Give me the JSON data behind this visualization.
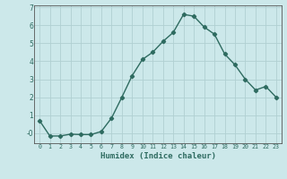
{
  "x": [
    0,
    1,
    2,
    3,
    4,
    5,
    6,
    7,
    8,
    9,
    10,
    11,
    12,
    13,
    14,
    15,
    16,
    17,
    18,
    19,
    20,
    21,
    22,
    23
  ],
  "y": [
    0.7,
    -0.15,
    -0.15,
    -0.05,
    -0.07,
    -0.07,
    0.1,
    0.85,
    2.0,
    3.2,
    4.1,
    4.5,
    5.1,
    5.6,
    6.6,
    6.5,
    5.9,
    5.5,
    4.4,
    3.8,
    3.0,
    2.4,
    2.6,
    2.0
  ],
  "line_color": "#2e6b60",
  "marker": "D",
  "marker_size": 2.2,
  "line_width": 1.0,
  "xlabel": "Humidex (Indice chaleur)",
  "ylim": [
    -0.55,
    7.1
  ],
  "xlim": [
    -0.5,
    23.5
  ],
  "yticks": [
    0,
    1,
    2,
    3,
    4,
    5,
    6,
    7
  ],
  "ytick_labels": [
    "-0",
    "1",
    "2",
    "3",
    "4",
    "5",
    "6",
    "7"
  ],
  "xticks": [
    0,
    1,
    2,
    3,
    4,
    5,
    6,
    7,
    8,
    9,
    10,
    11,
    12,
    13,
    14,
    15,
    16,
    17,
    18,
    19,
    20,
    21,
    22,
    23
  ],
  "bg_color": "#cce8ea",
  "grid_color": "#b0d0d2",
  "axis_color": "#555555"
}
